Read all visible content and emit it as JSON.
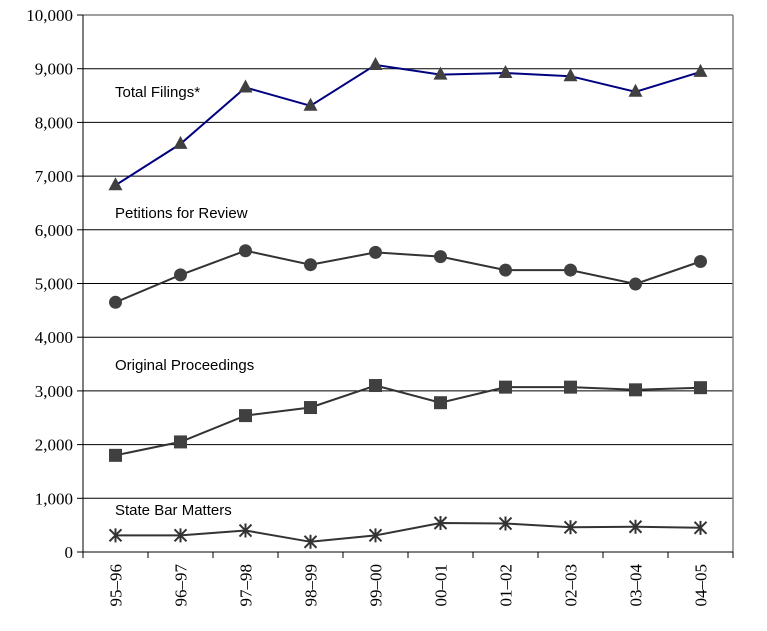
{
  "chart_data": {
    "type": "line",
    "title": "",
    "xlabel": "",
    "ylabel": "",
    "ylim": [
      0,
      10000
    ],
    "yticks": [
      "0",
      "1,000",
      "2,000",
      "3,000",
      "4,000",
      "5,000",
      "6,000",
      "7,000",
      "8,000",
      "9,000",
      "10,000"
    ],
    "yticks_values": [
      0,
      1000,
      2000,
      3000,
      4000,
      5000,
      6000,
      7000,
      8000,
      9000,
      10000
    ],
    "categories": [
      "95–96",
      "96–97",
      "97–98",
      "98–99",
      "99–00",
      "00–01",
      "01–02",
      "02–03",
      "03–04",
      "04–05"
    ],
    "grid": "horizontal",
    "legend": "none",
    "series": [
      {
        "name": "Total Filings*",
        "marker": "triangle",
        "color": "#000080",
        "values": [
          6830,
          7600,
          8650,
          8310,
          9070,
          8890,
          8920,
          8860,
          8570,
          8940
        ]
      },
      {
        "name": "Petitions for Review",
        "marker": "circle",
        "color": "#333333",
        "values": [
          4650,
          5160,
          5610,
          5350,
          5580,
          5500,
          5250,
          5250,
          4990,
          5410
        ]
      },
      {
        "name": "Original Proceedings",
        "marker": "square",
        "color": "#333333",
        "values": [
          1800,
          2050,
          2540,
          2690,
          3100,
          2780,
          3070,
          3070,
          3020,
          3060
        ]
      },
      {
        "name": "State Bar Matters",
        "marker": "star",
        "color": "#333333",
        "values": [
          310,
          310,
          400,
          190,
          310,
          540,
          530,
          460,
          470,
          450
        ]
      }
    ]
  }
}
